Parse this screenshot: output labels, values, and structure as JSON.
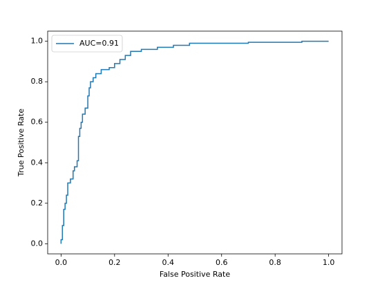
{
  "chart_data": {
    "type": "line",
    "xlabel": "False Positive Rate",
    "ylabel": "True Positive Rate",
    "x": [
      0,
      0,
      0.005,
      0.005,
      0.01,
      0.01,
      0.015,
      0.015,
      0.02,
      0.02,
      0.025,
      0.025,
      0.035,
      0.035,
      0.045,
      0.045,
      0.05,
      0.05,
      0.06,
      0.06,
      0.065,
      0.065,
      0.07,
      0.07,
      0.075,
      0.075,
      0.08,
      0.08,
      0.09,
      0.09,
      0.1,
      0.1,
      0.105,
      0.105,
      0.11,
      0.11,
      0.12,
      0.12,
      0.13,
      0.13,
      0.15,
      0.15,
      0.18,
      0.18,
      0.2,
      0.2,
      0.22,
      0.22,
      0.24,
      0.24,
      0.26,
      0.26,
      0.3,
      0.3,
      0.36,
      0.36,
      0.42,
      0.42,
      0.48,
      0.48,
      0.7,
      0.7,
      0.9,
      0.9,
      1.0
    ],
    "series": [
      {
        "name": "AUC=0.91",
        "color": "#1f77b4",
        "values": [
          0,
          0.02,
          0.02,
          0.09,
          0.09,
          0.17,
          0.17,
          0.2,
          0.2,
          0.24,
          0.24,
          0.3,
          0.3,
          0.32,
          0.32,
          0.36,
          0.36,
          0.38,
          0.38,
          0.41,
          0.41,
          0.53,
          0.53,
          0.57,
          0.57,
          0.6,
          0.6,
          0.64,
          0.64,
          0.67,
          0.67,
          0.73,
          0.73,
          0.77,
          0.77,
          0.8,
          0.8,
          0.82,
          0.82,
          0.84,
          0.84,
          0.86,
          0.86,
          0.87,
          0.87,
          0.89,
          0.89,
          0.91,
          0.91,
          0.93,
          0.93,
          0.95,
          0.95,
          0.96,
          0.96,
          0.97,
          0.97,
          0.98,
          0.98,
          0.99,
          0.99,
          0.995,
          0.995,
          1.0,
          1.0
        ]
      }
    ],
    "xlim": [
      -0.05,
      1.05
    ],
    "ylim": [
      -0.05,
      1.05
    ],
    "xticks": [
      {
        "value": 0,
        "label": "0.0"
      },
      0.2,
      0.4,
      0.6,
      0.8,
      {
        "value": 1,
        "label": "1.0"
      }
    ],
    "yticks": [
      {
        "value": 0,
        "label": "0.0"
      },
      0.2,
      0.4,
      0.6,
      0.8,
      {
        "value": 1,
        "label": "1.0"
      }
    ],
    "legend": "upper left"
  }
}
